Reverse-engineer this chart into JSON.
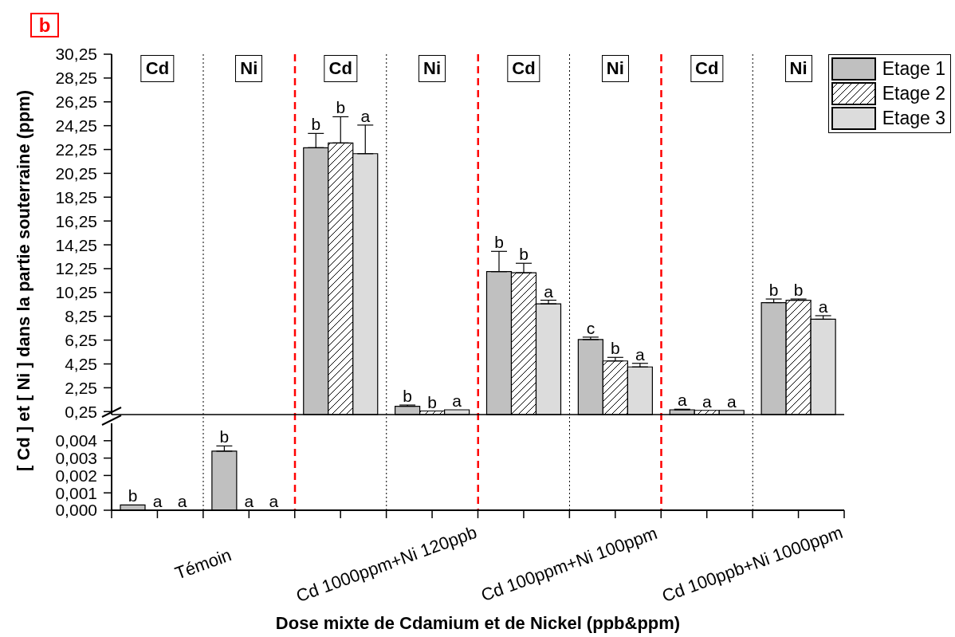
{
  "chart_data": [
    {
      "type": "bar",
      "title": "b",
      "ylabel": "[ Cd ] et [ Ni ] dans la partie souterraine (ppm)",
      "categories": [
        null,
        null,
        null,
        null,
        null,
        null,
        null,
        null
      ],
      "series": [
        {
          "name": "Etage 1",
          "color": "#c0c0c0",
          "values": [
            null,
            null,
            22.4,
            0.7,
            12.0,
            6.3,
            0.4,
            9.4
          ],
          "errors": [
            null,
            null,
            [
              22.4,
              23.6
            ],
            [
              0.7,
              0.8
            ],
            [
              12.0,
              13.7
            ],
            [
              6.3,
              6.5
            ],
            [
              0.4,
              0.45
            ],
            [
              9.4,
              9.7
            ]
          ],
          "value_labels": [
            null,
            null,
            "b",
            "b",
            "b",
            "c",
            "a",
            "b"
          ]
        },
        {
          "name": "Etage 2",
          "color": "#000000",
          "values": [
            null,
            null,
            22.8,
            0.3,
            11.9,
            4.5,
            0.35,
            9.6
          ],
          "errors": [
            null,
            null,
            [
              22.8,
              25.0
            ],
            null,
            [
              11.9,
              12.7
            ],
            [
              4.5,
              4.8
            ],
            null,
            [
              9.6,
              9.7
            ]
          ],
          "value_labels": [
            null,
            null,
            "b",
            "b",
            "b",
            "b",
            "a",
            "b"
          ]
        },
        {
          "name": "Etage 3",
          "color": "#dcdcdc",
          "values": [
            null,
            null,
            21.9,
            0.4,
            9.3,
            4.0,
            0.35,
            8.0
          ],
          "errors": [
            null,
            null,
            [
              21.9,
              24.3
            ],
            null,
            [
              9.3,
              9.6
            ],
            [
              4.0,
              4.3
            ],
            null,
            [
              8.0,
              8.3
            ]
          ],
          "value_labels": [
            null,
            null,
            "a",
            "a",
            "a",
            "a",
            "a",
            "a"
          ]
        }
      ],
      "ylim": [
        0,
        30.25
      ],
      "yticks": [
        {
          "value": 0.25,
          "label": "0,25"
        },
        {
          "value": 2.25,
          "label": "2,25"
        },
        {
          "value": 4.25,
          "label": "4,25"
        },
        {
          "value": 6.25,
          "label": "6,25"
        },
        {
          "value": 8.25,
          "label": "8,25"
        },
        {
          "value": 10.25,
          "label": "10,25"
        },
        {
          "value": 12.25,
          "label": "12,25"
        },
        {
          "value": 14.25,
          "label": "14,25"
        },
        {
          "value": 16.25,
          "label": "16,25"
        },
        {
          "value": 18.25,
          "label": "18,25"
        },
        {
          "value": 20.25,
          "label": "20,25"
        },
        {
          "value": 22.25,
          "label": "22,25"
        },
        {
          "value": 24.25,
          "label": "24,25"
        },
        {
          "value": 26.25,
          "label": "26,25"
        },
        {
          "value": 28.25,
          "label": "28,25"
        },
        {
          "value": 30.25,
          "label": "30,25"
        }
      ],
      "annotations": [
        "Cd",
        "Ni",
        "Cd",
        "Ni",
        "Cd",
        "Ni",
        "Cd",
        "Ni"
      ],
      "legend": "top right"
    },
    {
      "type": "bar",
      "xlabel": "Dose mixte de Cdamium et de Nickel (ppb&ppm)",
      "categories": [
        null,
        null,
        null,
        null,
        null,
        null,
        null,
        null
      ],
      "series": [
        {
          "color": "#c0c0c0",
          "values": [
            0.0003,
            0.0034,
            null,
            null,
            null,
            null,
            null,
            null
          ],
          "errors": [
            null,
            [
              0.0034,
              0.0037
            ],
            null,
            null,
            null,
            null,
            null,
            null
          ],
          "value_labels": [
            "b",
            "b",
            null,
            null,
            null,
            null,
            null,
            null
          ]
        },
        {
          "color": "#000000",
          "values": [
            0,
            0,
            null,
            null,
            null,
            null,
            null,
            null
          ],
          "value_labels": [
            "a",
            "a",
            null,
            null,
            null,
            null,
            null,
            null
          ]
        },
        {
          "color": "#dcdcdc",
          "values": [
            0,
            0,
            null,
            null,
            null,
            null,
            null,
            null
          ],
          "value_labels": [
            "a",
            "a",
            null,
            null,
            null,
            null,
            null,
            null
          ]
        }
      ],
      "ylim": [
        0,
        0.005
      ],
      "yticks": [
        {
          "value": 0,
          "label": "0,000"
        },
        {
          "value": 0.001,
          "label": "0,001"
        },
        {
          "value": 0.002,
          "label": "0,002"
        },
        {
          "value": 0.003,
          "label": "0,003"
        },
        {
          "value": 0.004,
          "label": "0,004"
        }
      ],
      "annotations": [
        "Témoin",
        "Cd 1000ppm+Ni 120ppb",
        "Cd 100ppm+Ni 100ppm",
        "Cd 100ppb+Ni 1000ppm"
      ]
    }
  ]
}
